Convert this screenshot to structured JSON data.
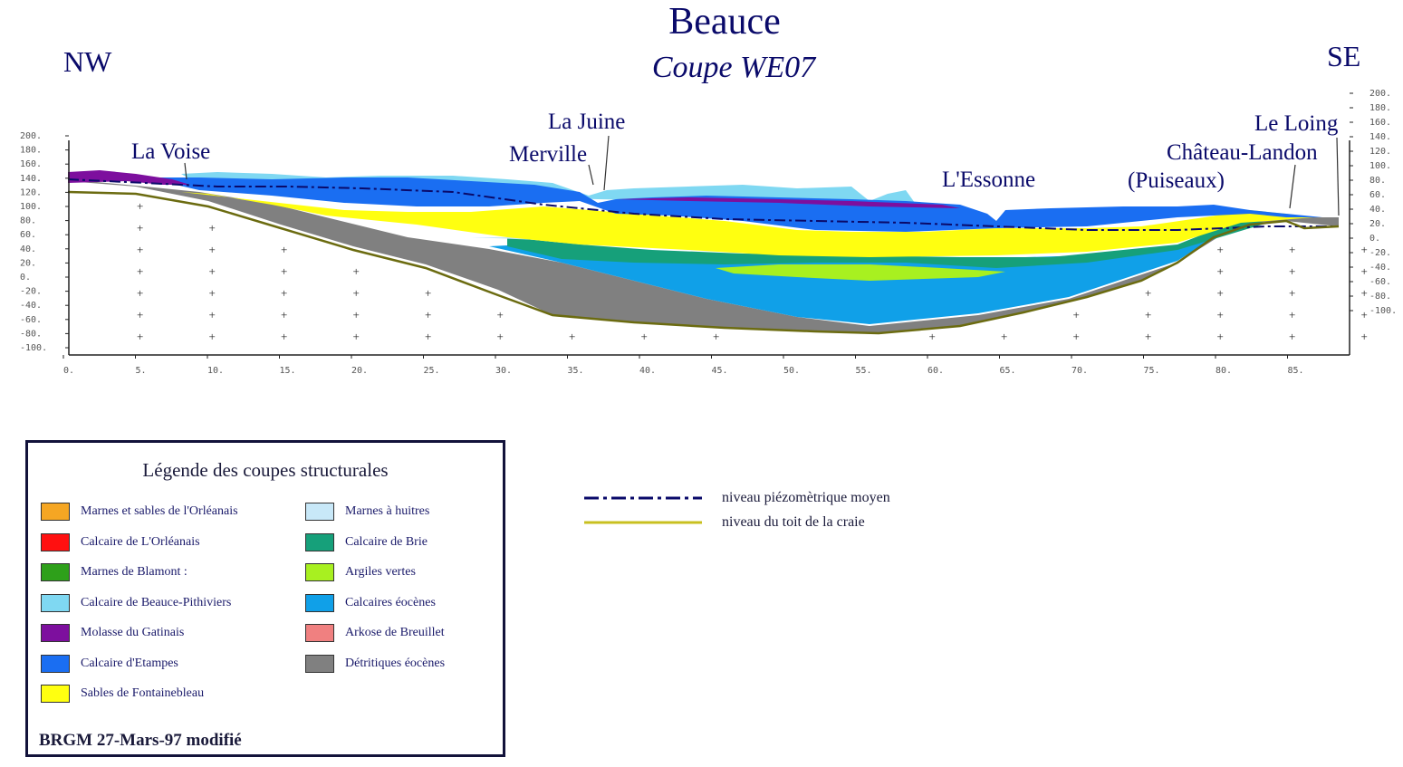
{
  "title": "Beauce",
  "subtitle": "Coupe WE07",
  "directions": {
    "left": "NW",
    "right": "SE"
  },
  "places": [
    {
      "name": "La Voise",
      "km": 8
    },
    {
      "name": "Merville",
      "km": 36
    },
    {
      "name": "La Juine",
      "km": 37.5
    },
    {
      "name": "L'Essonne",
      "km": 64.5
    },
    {
      "name": "(Puiseaux)",
      "km": 77
    },
    {
      "name": "Château-Landon",
      "km": 84
    },
    {
      "name": "Le Loing",
      "km": 88.5
    }
  ],
  "axes": {
    "x_ticks": [
      "0.",
      "5.",
      "10.",
      "15.",
      "20.",
      "25.",
      "30.",
      "35.",
      "40.",
      "45.",
      "50.",
      "55.",
      "60.",
      "65.",
      "70.",
      "75.",
      "80.",
      "85."
    ],
    "y_ticks_left": [
      "200.",
      "180.",
      "160.",
      "140.",
      "120.",
      "100.",
      "80.",
      "60.",
      "40.",
      "20.",
      "0.",
      "-20.",
      "-40.",
      "-60.",
      "-80.",
      "-100."
    ],
    "y_ticks_right": [
      "200.",
      "180.",
      "160.",
      "140.",
      "120.",
      "100.",
      "80.",
      "60.",
      "40.",
      "20.",
      "0.",
      "-20.",
      "-40.",
      "-60.",
      "-80.",
      "-100."
    ]
  },
  "legend": {
    "title": "Légende des coupes structurales",
    "items_left": [
      {
        "label": "Marnes et sables de l'Orléanais",
        "color": "#f5a623"
      },
      {
        "label": "Calcaire de L'Orléanais",
        "color": "#ff1010"
      },
      {
        "label": "Marnes de Blamont :",
        "color": "#2ea01a"
      },
      {
        "label": "Calcaire de Beauce-Pithiviers",
        "color": "#7fd8f2"
      },
      {
        "label": "Molasse du Gatinais",
        "color": "#7d0f9e"
      },
      {
        "label": "Calcaire d'Etampes",
        "color": "#1a6ef2"
      },
      {
        "label": "Sables de Fontainebleau",
        "color": "#ffff10"
      }
    ],
    "items_right": [
      {
        "label": "Marnes à huitres",
        "color": "#c8e8f8"
      },
      {
        "label": "Calcaire de Brie",
        "color": "#16a07a"
      },
      {
        "label": "Argiles vertes",
        "color": "#a8f020"
      },
      {
        "label": "Calcaires éocènes",
        "color": "#10a0e8"
      },
      {
        "label": "Arkose de Breuillet",
        "color": "#f08080"
      },
      {
        "label": "Détritiques éocènes",
        "color": "#808080"
      }
    ],
    "credit": "BRGM 27-Mars-97 modifié"
  },
  "line_legend": [
    {
      "label": "niveau piézomètrique moyen",
      "color": "#0a0a6a"
    },
    {
      "label": "niveau du toit de la craie",
      "color": "#c8c020"
    }
  ]
}
